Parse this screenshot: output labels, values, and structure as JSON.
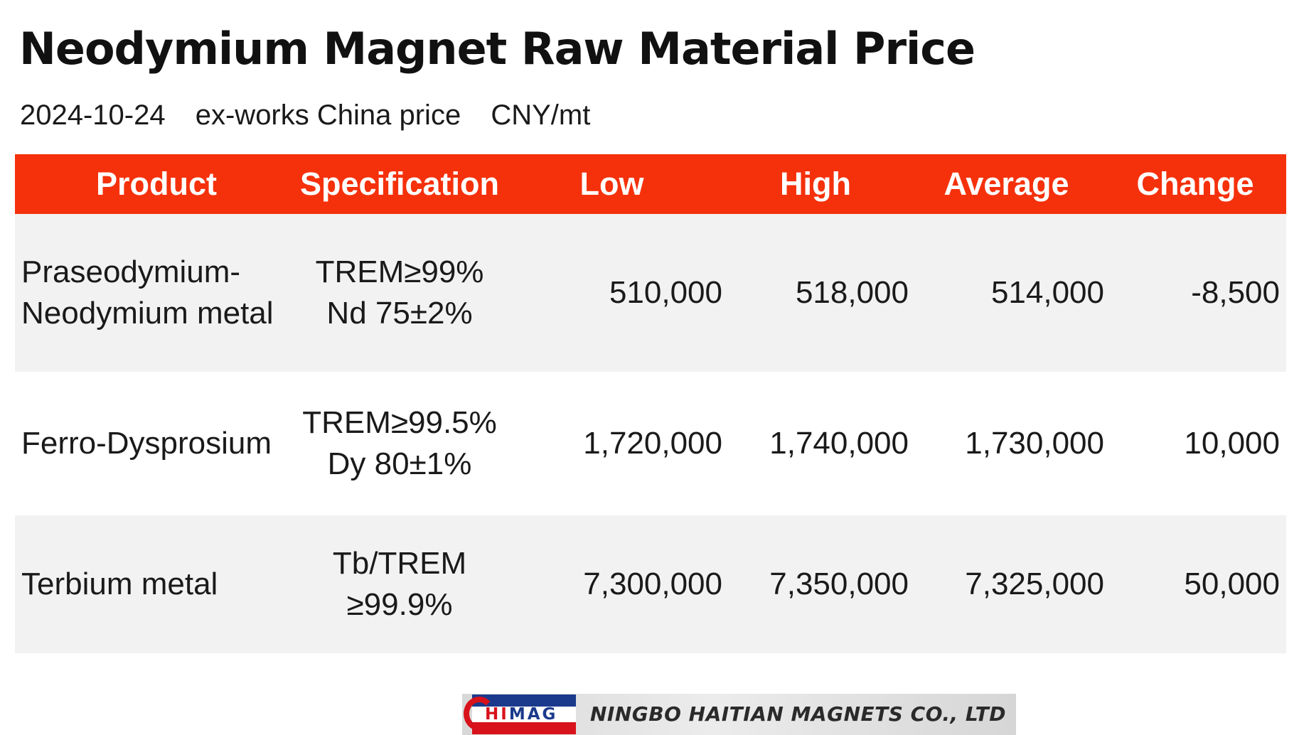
{
  "title": "Neodymium Magnet Raw Material Price",
  "subtitle": {
    "date": "2024-10-24",
    "basis": "ex-works China price",
    "unit": "CNY/mt"
  },
  "table": {
    "headers": [
      "Product",
      "Specification",
      "Low",
      "High",
      "Average",
      "Change"
    ],
    "rows": [
      {
        "product": [
          "Praseodymium-",
          "Neodymium metal"
        ],
        "spec": [
          "TREM≥99%",
          "Nd 75±2%"
        ],
        "low": "510,000",
        "high": "518,000",
        "average": "514,000",
        "change": "-8,500"
      },
      {
        "product": [
          "Ferro-Dysprosium"
        ],
        "spec": [
          "TREM≥99.5%",
          "Dy 80±1%"
        ],
        "low": "1,720,000",
        "high": "1,740,000",
        "average": "1,730,000",
        "change": "10,000"
      },
      {
        "product": [
          "Terbium metal"
        ],
        "spec": [
          "Tb/TREM",
          "≥99.9%"
        ],
        "low": "7,300,000",
        "high": "7,350,000",
        "average": "7,325,000",
        "change": "50,000"
      }
    ]
  },
  "colors": {
    "header_background": "#f5310b",
    "change_negative": "#e83a18",
    "change_positive": "#6fd11a"
  },
  "footer": {
    "logo_text": "HIMAG",
    "company": "NINGBO HAITIAN MAGNETS CO., LTD"
  }
}
